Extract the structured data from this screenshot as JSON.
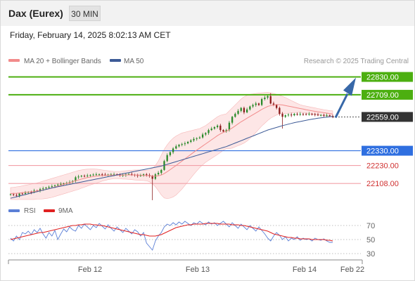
{
  "header": {
    "instrument": "Dax (Eurex)",
    "timeframe": "30 MIN"
  },
  "datetime": "Friday, February 14, 2025 8:02:13 AM CET",
  "legend": {
    "items": [
      {
        "label": "MA 20 + Bollinger Bands",
        "color": "#f28b8b"
      },
      {
        "label": "MA 50",
        "color": "#3c5a96"
      }
    ],
    "source": "Research © 2025 Trading Central"
  },
  "rsi_legend": {
    "items": [
      {
        "label": "RSI",
        "color": "#5b7fd6"
      },
      {
        "label": "9MA",
        "color": "#e02020"
      }
    ]
  },
  "colors": {
    "resistance": "#4caf10",
    "support_blue": "#2f6fe0",
    "support_pink": "#f2a0a8",
    "label_red": "#d03030",
    "candle_up": "#2a8a2a",
    "candle_down": "#8b1a1a",
    "price_badge": "#333333",
    "arrow": "#3868a8",
    "rsi": "#5b7fd6",
    "rsi_ma": "#e02020"
  },
  "chart_data": [
    {
      "type": "candlestick",
      "title": "",
      "x_ticks": [
        "Feb 12",
        "Feb 13",
        "Feb 14",
        "Feb 22"
      ],
      "ylim": [
        21990,
        22880
      ],
      "levels": [
        {
          "value": 22830.0,
          "label": "22830.00",
          "kind": "resistance"
        },
        {
          "value": 22709.0,
          "label": "22709.00",
          "kind": "resistance"
        },
        {
          "value": 22559.0,
          "label": "22559.00",
          "kind": "last_price"
        },
        {
          "value": 22330.0,
          "label": "22330.00",
          "kind": "pivot"
        },
        {
          "value": 22230.0,
          "label": "22230.00",
          "kind": "support"
        },
        {
          "value": 22108.0,
          "label": "22108.00",
          "kind": "support"
        }
      ],
      "close": [
        22035,
        22030,
        22025,
        22040,
        22038,
        22045,
        22050,
        22048,
        22060,
        22058,
        22070,
        22075,
        22080,
        22085,
        22090,
        22095,
        22100,
        22105,
        22108,
        22112,
        22118,
        22125,
        22150,
        22155,
        22160,
        22158,
        22162,
        22165,
        22168,
        22170,
        22170,
        22168,
        22165,
        22168,
        22170,
        22170,
        22168,
        22162,
        22165,
        22170,
        22172,
        22168,
        22165,
        22160,
        22162,
        22170,
        22165,
        22160,
        22140,
        22170,
        22180,
        22200,
        22260,
        22300,
        22320,
        22345,
        22360,
        22370,
        22375,
        22380,
        22390,
        22400,
        22410,
        22415,
        22420,
        22440,
        22450,
        22470,
        22480,
        22490,
        22500,
        22470,
        22460,
        22470,
        22520,
        22560,
        22580,
        22600,
        22620,
        22590,
        22610,
        22630,
        22640,
        22650,
        22640,
        22680,
        22690,
        22700,
        22650,
        22640,
        22620,
        22580,
        22560,
        22570,
        22575,
        22570,
        22580,
        22575,
        22580,
        22578,
        22575,
        22580,
        22578,
        22575,
        22570,
        22572,
        22568,
        22570,
        22565,
        22559
      ],
      "ma50": [
        22008,
        22013,
        22018,
        22023,
        22028,
        22033,
        22038,
        22043,
        22048,
        22053,
        22058,
        22063,
        22068,
        22073,
        22078,
        22082,
        22086,
        22090,
        22094,
        22098,
        22102,
        22106,
        22110,
        22114,
        22118,
        22122,
        22126,
        22130,
        22134,
        22138,
        22142,
        22146,
        22150,
        22154,
        22158,
        22162,
        22166,
        22170,
        22174,
        22178,
        22182,
        22186,
        22190,
        22194,
        22198,
        22202,
        22206,
        22210,
        22214,
        22218,
        22222,
        22226,
        22232,
        22238,
        22244,
        22250,
        22256,
        22262,
        22268,
        22274,
        22280,
        22286,
        22292,
        22298,
        22304,
        22310,
        22316,
        22322,
        22328,
        22334,
        22340,
        22346,
        22352,
        22358,
        22366,
        22374,
        22382,
        22390,
        22398,
        22406,
        22414,
        22422,
        22430,
        22438,
        22446,
        22454,
        22462,
        22470,
        22476,
        22482,
        22488,
        22494,
        22500,
        22505,
        22510,
        22515,
        22520,
        22524,
        22528,
        22532,
        22536,
        22540,
        22544,
        22547,
        22550,
        22553,
        22556,
        22558,
        22560,
        22562
      ],
      "ma20": [
        22040,
        22041,
        22042,
        22044,
        22046,
        22048,
        22050,
        22052,
        22054,
        22057,
        22060,
        22064,
        22068,
        22073,
        22078,
        22084,
        22090,
        22096,
        22102,
        22108,
        22114,
        22120,
        22126,
        22132,
        22138,
        22143,
        22148,
        22152,
        22155,
        22158,
        22160,
        22162,
        22163,
        22164,
        22165,
        22165,
        22165,
        22165,
        22165,
        22166,
        22166,
        22166,
        22166,
        22165,
        22164,
        22163,
        22162,
        22160,
        22158,
        22158,
        22160,
        22165,
        22175,
        22188,
        22202,
        22216,
        22230,
        22245,
        22260,
        22275,
        22290,
        22305,
        22320,
        22334,
        22348,
        22362,
        22376,
        22390,
        22404,
        22418,
        22432,
        22444,
        22454,
        22462,
        22472,
        22484,
        22498,
        22512,
        22526,
        22538,
        22550,
        22562,
        22574,
        22586,
        22598,
        22610,
        22620,
        22630,
        22636,
        22640,
        22642,
        22642,
        22640,
        22636,
        22632,
        22628,
        22624,
        22620,
        22616,
        22612,
        22608,
        22604,
        22600,
        22597,
        22594,
        22591,
        22588,
        22585,
        22582,
        22579
      ],
      "band_up": [
        22080,
        22082,
        22085,
        22088,
        22092,
        22096,
        22100,
        22104,
        22108,
        22112,
        22118,
        22124,
        22130,
        22136,
        22142,
        22148,
        22154,
        22160,
        22166,
        22172,
        22178,
        22184,
        22190,
        22196,
        22200,
        22203,
        22205,
        22206,
        22206,
        22205,
        22203,
        22200,
        22197,
        22194,
        22192,
        22190,
        22190,
        22190,
        22192,
        22194,
        22196,
        22198,
        22200,
        22200,
        22199,
        22198,
        22198,
        22200,
        22210,
        22230,
        22260,
        22300,
        22340,
        22370,
        22395,
        22415,
        22430,
        22440,
        22450,
        22455,
        22460,
        22465,
        22470,
        22475,
        22480,
        22490,
        22500,
        22515,
        22530,
        22545,
        22560,
        22570,
        22575,
        22580,
        22600,
        22620,
        22640,
        22660,
        22680,
        22695,
        22705,
        22712,
        22715,
        22718,
        22720,
        22722,
        22724,
        22725,
        22722,
        22718,
        22712,
        22705,
        22698,
        22690,
        22680,
        22670,
        22660,
        22650,
        22642,
        22636,
        22632,
        22628,
        22624,
        22620,
        22616,
        22612,
        22608,
        22605,
        22602,
        22600
      ],
      "band_lo": [
        22000,
        22000,
        21999,
        22000,
        22000,
        22000,
        22000,
        22000,
        22000,
        22002,
        22002,
        22004,
        22006,
        22010,
        22014,
        22020,
        22026,
        22032,
        22038,
        22044,
        22050,
        22056,
        22062,
        22068,
        22076,
        22083,
        22091,
        22098,
        22104,
        22111,
        22117,
        22124,
        22129,
        22134,
        22138,
        22140,
        22140,
        22140,
        22138,
        22138,
        22136,
        22134,
        22132,
        22130,
        22129,
        22128,
        22126,
        22120,
        22106,
        22086,
        22060,
        22030,
        22010,
        22006,
        22009,
        22017,
        22030,
        22050,
        22070,
        22095,
        22120,
        22145,
        22170,
        22193,
        22216,
        22234,
        22252,
        22265,
        22278,
        22291,
        22304,
        22318,
        22333,
        22344,
        22344,
        22348,
        22356,
        22364,
        22372,
        22381,
        22395,
        22412,
        22433,
        22454,
        22476,
        22498,
        22516,
        22535,
        22550,
        22562,
        22572,
        22579,
        22582,
        22582,
        22584,
        22586,
        22588,
        22590,
        22590,
        22588,
        22584,
        22580,
        22576,
        22574,
        22572,
        22570,
        22568,
        22565,
        22562,
        22558
      ]
    },
    {
      "type": "line",
      "title": "",
      "y_ticks": [
        70,
        50,
        30
      ],
      "ylim": [
        20,
        80
      ],
      "rsi": [
        52,
        48,
        55,
        50,
        60,
        58,
        62,
        57,
        64,
        60,
        66,
        58,
        52,
        60,
        55,
        63,
        50,
        58,
        65,
        61,
        68,
        64,
        62,
        70,
        66,
        72,
        68,
        64,
        70,
        67,
        73,
        69,
        65,
        71,
        66,
        62,
        68,
        64,
        60,
        66,
        62,
        58,
        64,
        61,
        55,
        60,
        45,
        40,
        35,
        48,
        55,
        60,
        68,
        72,
        70,
        74,
        71,
        75,
        72,
        76,
        73,
        70,
        74,
        72,
        76,
        73,
        71,
        75,
        72,
        74,
        70,
        73,
        76,
        72,
        68,
        74,
        70,
        66,
        72,
        68,
        64,
        70,
        66,
        62,
        68,
        63,
        58,
        52,
        48,
        55,
        60,
        56,
        50,
        54,
        48,
        52,
        50,
        54,
        49,
        52,
        50,
        51,
        48,
        52,
        50,
        49,
        51,
        48,
        46,
        46
      ],
      "rsi_ma": [
        50,
        51,
        52,
        53,
        54,
        55,
        56,
        57,
        58,
        59,
        60,
        60,
        61,
        62,
        63,
        64,
        65,
        66,
        67,
        68,
        69,
        70,
        70,
        71,
        71,
        72,
        72,
        72,
        71,
        71,
        70,
        70,
        69,
        68,
        67,
        66,
        65,
        64,
        63,
        62,
        61,
        60,
        59,
        58,
        57,
        57,
        56,
        55,
        55,
        55,
        56,
        57,
        59,
        61,
        63,
        65,
        67,
        68,
        69,
        70,
        71,
        71,
        72,
        72,
        72,
        72,
        73,
        73,
        73,
        73,
        73,
        72,
        72,
        72,
        72,
        71,
        71,
        71,
        70,
        70,
        69,
        68,
        67,
        66,
        65,
        64,
        63,
        62,
        60,
        58,
        57,
        56,
        55,
        54,
        53,
        53,
        52,
        52,
        51,
        51,
        51,
        51,
        50,
        50,
        50,
        50,
        50,
        49,
        49,
        48
      ]
    }
  ]
}
